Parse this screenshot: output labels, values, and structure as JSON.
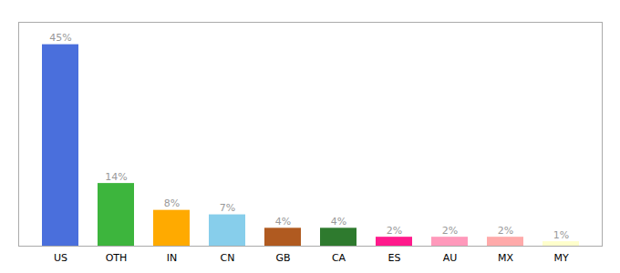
{
  "chart_data": {
    "type": "bar",
    "categories": [
      "US",
      "OTH",
      "IN",
      "CN",
      "GB",
      "CA",
      "ES",
      "AU",
      "MX",
      "MY"
    ],
    "values": [
      45,
      14,
      8,
      7,
      4,
      4,
      2,
      2,
      2,
      1
    ],
    "value_labels": [
      "45%",
      "14%",
      "8%",
      "7%",
      "4%",
      "4%",
      "2%",
      "2%",
      "2%",
      "1%"
    ],
    "colors": [
      "#4a6fdc",
      "#3db53d",
      "#ffaa00",
      "#87ceeb",
      "#b05a20",
      "#2e7a2e",
      "#ff1a8c",
      "#ff99bb",
      "#ffaaaa",
      "#ffffcc"
    ],
    "ylim": [
      0,
      50
    ],
    "yticks": [],
    "grid": false,
    "data_labels": true,
    "tick_labels": "x"
  }
}
